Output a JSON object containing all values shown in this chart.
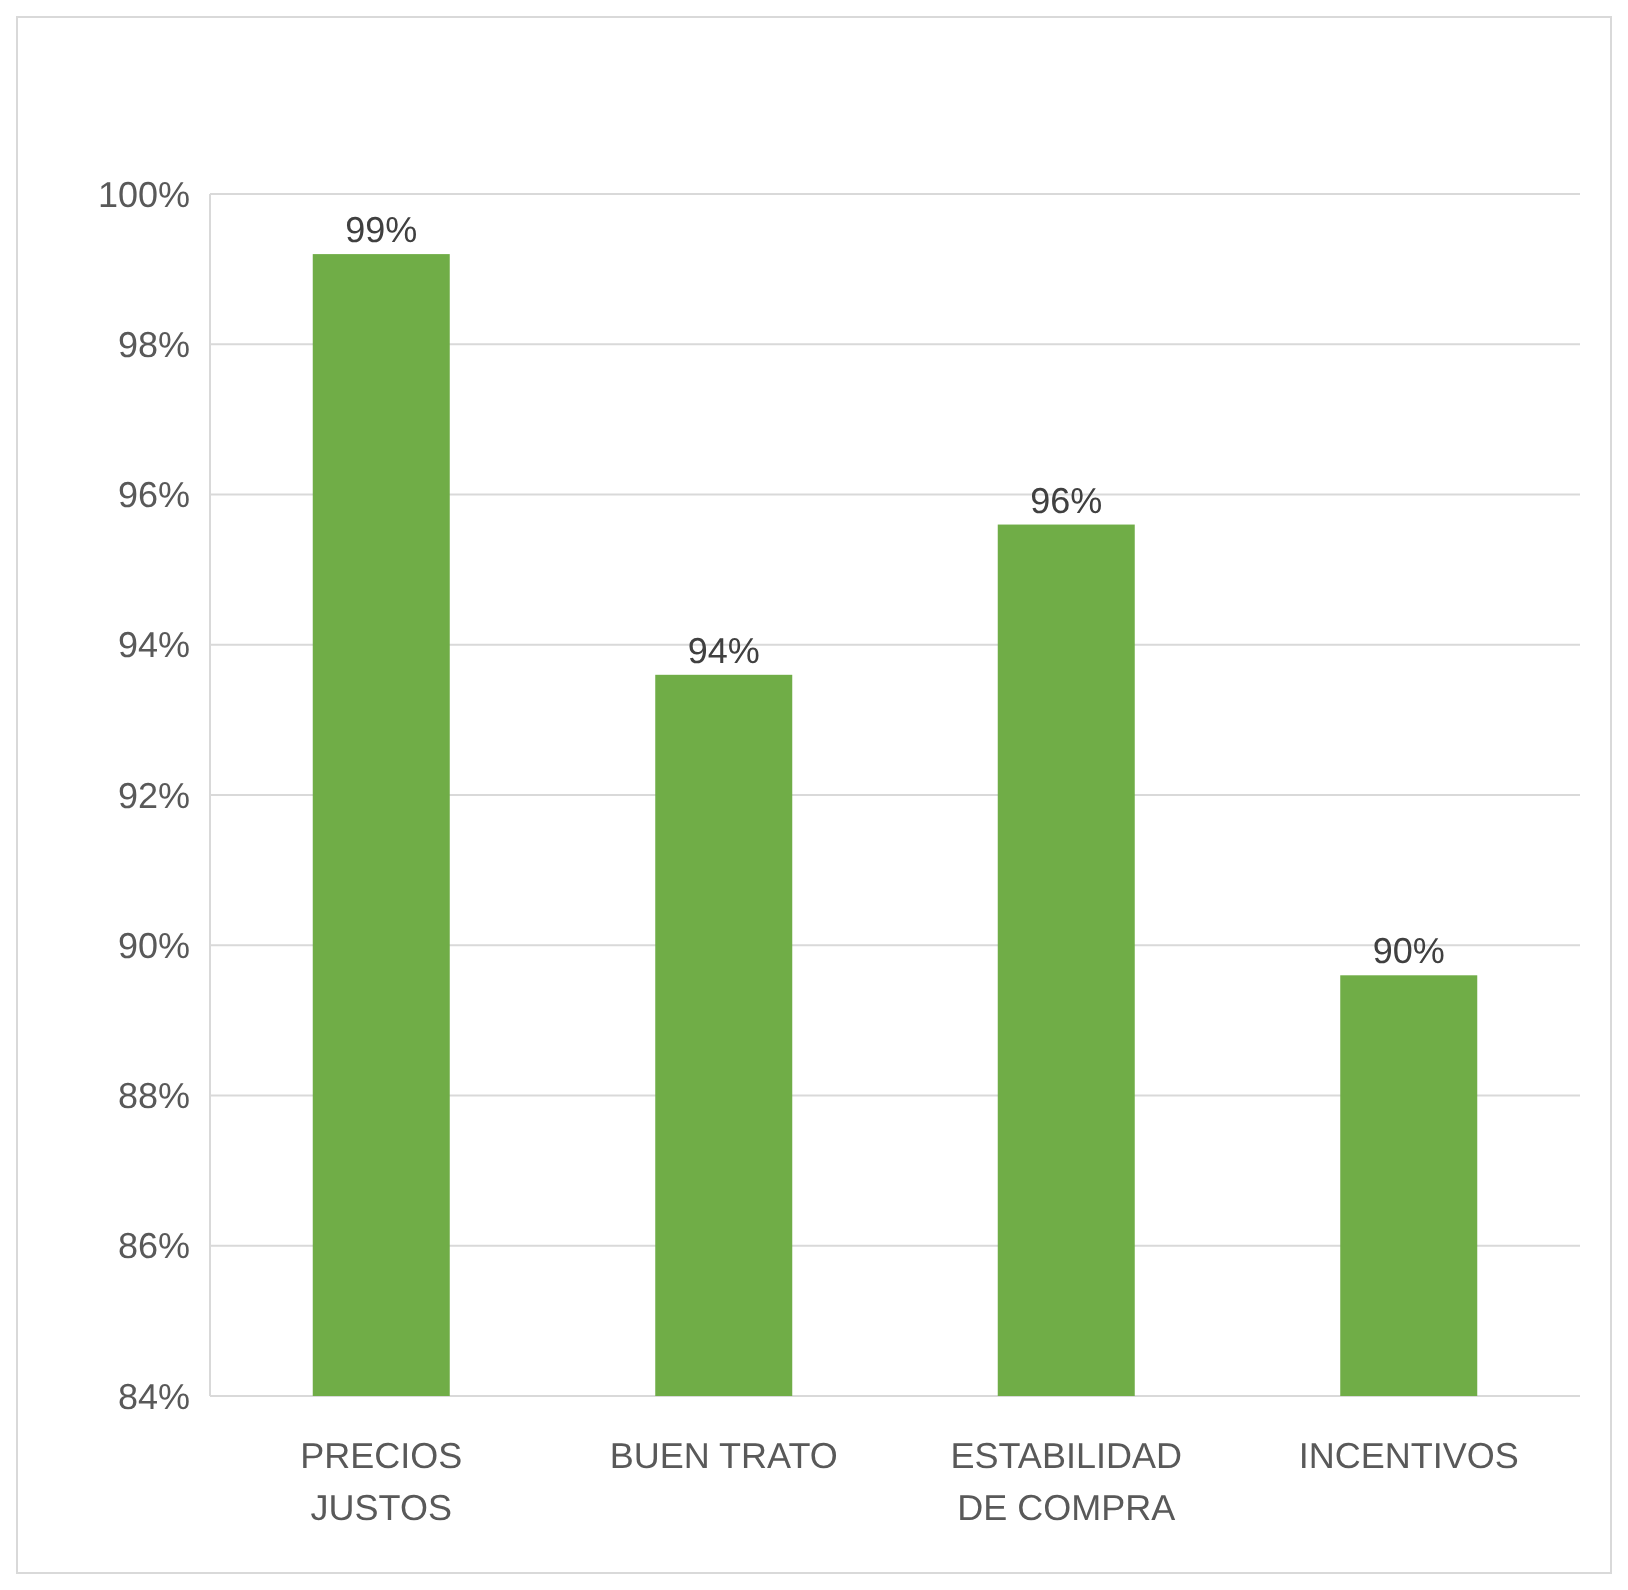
{
  "chart_data": {
    "type": "bar",
    "categories": [
      "PRECIOS JUSTOS",
      "BUEN TRATO",
      "ESTABILIDAD DE COMPRA",
      "INCENTIVOS"
    ],
    "values": [
      99.2,
      93.6,
      95.6,
      89.6
    ],
    "value_labels": [
      "99%",
      "94%",
      "96%",
      "90%"
    ],
    "color": "#70ad47",
    "ylim": [
      84,
      100
    ],
    "yticks": [
      {
        "value": 84,
        "label": "84%"
      },
      {
        "value": 86,
        "label": "86%"
      },
      {
        "value": 88,
        "label": "88%"
      },
      {
        "value": 90,
        "label": "90%"
      },
      {
        "value": 92,
        "label": "92%"
      },
      {
        "value": 94,
        "label": "94%"
      },
      {
        "value": 96,
        "label": "96%"
      },
      {
        "value": 98,
        "label": "98%"
      },
      {
        "value": 100,
        "label": "100%"
      }
    ],
    "grid": "y"
  }
}
